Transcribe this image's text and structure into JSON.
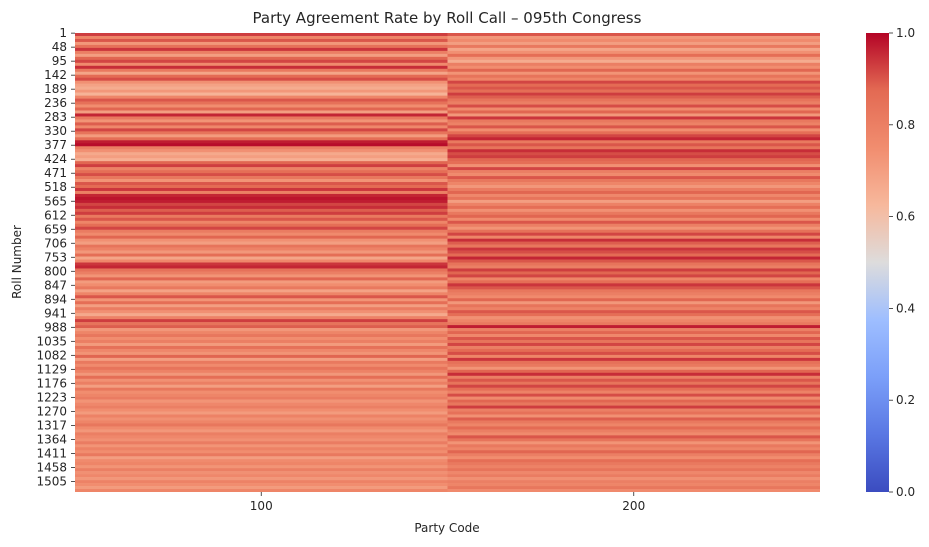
{
  "chart_data": {
    "type": "heatmap",
    "title": "Party Agreement Rate by Roll Call – 095th Congress",
    "xlabel": "Party Code",
    "ylabel": "Roll Number",
    "x_categories": [
      "100",
      "200"
    ],
    "y_tick_labels": [
      "1",
      "48",
      "95",
      "142",
      "189",
      "236",
      "283",
      "330",
      "377",
      "424",
      "471",
      "518",
      "565",
      "612",
      "659",
      "706",
      "753",
      "800",
      "847",
      "894",
      "941",
      "988",
      "1035",
      "1082",
      "1129",
      "1176",
      "1223",
      "1270",
      "1317",
      "1364",
      "1411",
      "1458",
      "1505"
    ],
    "y_range": [
      1,
      1540
    ],
    "value_range": [
      0.0,
      1.0
    ],
    "colormap": "coolwarm",
    "colorbar_ticks": [
      "0.0",
      "0.2",
      "0.4",
      "0.6",
      "0.8",
      "1.0"
    ],
    "colorbar_tick_values": [
      0.0,
      0.2,
      0.4,
      0.6,
      0.8,
      1.0
    ],
    "series": [
      {
        "name": "100",
        "segment_size": 10,
        "values": [
          0.93,
          0.78,
          0.9,
          0.72,
          0.85,
          0.94,
          0.8,
          0.7,
          0.88,
          0.92,
          0.76,
          0.95,
          0.82,
          0.68,
          0.87,
          0.91,
          0.74,
          0.69,
          0.66,
          0.72,
          0.64,
          0.78,
          0.9,
          0.85,
          0.75,
          0.88,
          0.7,
          0.96,
          0.82,
          0.73,
          0.89,
          0.77,
          0.92,
          0.84,
          0.71,
          0.86,
          0.97,
          0.99,
          0.8,
          0.74,
          0.67,
          0.7,
          0.65,
          0.88,
          0.93,
          0.79,
          0.86,
          0.91,
          0.83,
          0.73,
          0.9,
          0.87,
          0.94,
          0.8,
          0.96,
          0.98,
          0.97,
          0.92,
          0.95,
          0.89,
          0.93,
          0.82,
          0.9,
          0.78,
          0.86,
          0.92,
          0.81,
          0.76,
          0.88,
          0.74,
          0.7,
          0.84,
          0.79,
          0.72,
          0.86,
          0.68,
          0.77,
          0.94,
          0.96,
          0.85,
          0.8,
          0.73,
          0.88,
          0.71,
          0.75,
          0.82,
          0.69,
          0.78,
          0.9,
          0.73,
          0.86,
          0.7,
          0.81,
          0.74,
          0.67,
          0.79,
          0.93,
          0.84,
          0.89,
          0.72,
          0.78,
          0.83,
          0.75,
          0.8,
          0.71,
          0.85,
          0.77,
          0.73,
          0.88,
          0.7,
          0.82,
          0.76,
          0.84,
          0.79,
          0.72,
          0.86,
          0.74,
          0.8,
          0.7,
          0.83,
          0.75,
          0.78,
          0.81,
          0.73,
          0.77,
          0.8,
          0.75,
          0.71,
          0.79,
          0.74,
          0.78,
          0.83,
          0.76,
          0.72,
          0.8,
          0.77,
          0.74,
          0.81,
          0.73,
          0.79,
          0.75,
          0.82,
          0.7,
          0.76,
          0.78,
          0.73,
          0.8,
          0.74,
          0.77,
          0.72,
          0.79,
          0.75,
          0.71,
          0.78
        ]
      },
      {
        "name": "200",
        "segment_size": 10,
        "values": [
          0.9,
          0.72,
          0.76,
          0.7,
          0.82,
          0.68,
          0.74,
          0.86,
          0.72,
          0.66,
          0.8,
          0.75,
          0.88,
          0.73,
          0.84,
          0.78,
          0.92,
          0.87,
          0.9,
          0.86,
          0.93,
          0.89,
          0.84,
          0.8,
          0.91,
          0.76,
          0.88,
          0.72,
          0.94,
          0.82,
          0.79,
          0.9,
          0.75,
          0.86,
          0.92,
          0.96,
          0.82,
          0.9,
          0.84,
          0.95,
          0.91,
          0.93,
          0.88,
          0.86,
          0.74,
          0.92,
          0.8,
          0.76,
          0.9,
          0.83,
          0.78,
          0.72,
          0.81,
          0.88,
          0.77,
          0.84,
          0.7,
          0.79,
          0.86,
          0.74,
          0.82,
          0.88,
          0.76,
          0.9,
          0.8,
          0.73,
          0.85,
          0.92,
          0.78,
          0.95,
          0.89,
          0.83,
          0.94,
          0.91,
          0.87,
          0.96,
          0.9,
          0.84,
          0.8,
          0.93,
          0.88,
          0.92,
          0.78,
          0.86,
          0.94,
          0.9,
          0.83,
          0.8,
          0.76,
          0.88,
          0.72,
          0.84,
          0.79,
          0.9,
          0.86,
          0.74,
          0.78,
          0.82,
          0.97,
          0.8,
          0.88,
          0.77,
          0.9,
          0.84,
          0.92,
          0.8,
          0.87,
          0.91,
          0.78,
          0.94,
          0.85,
          0.82,
          0.73,
          0.88,
          0.95,
          0.8,
          0.9,
          0.84,
          0.92,
          0.86,
          0.79,
          0.91,
          0.76,
          0.88,
          0.83,
          0.93,
          0.8,
          0.85,
          0.74,
          0.89,
          0.82,
          0.78,
          0.87,
          0.8,
          0.76,
          0.9,
          0.84,
          0.73,
          0.82,
          0.78,
          0.88,
          0.8,
          0.75,
          0.86,
          0.82,
          0.79,
          0.84,
          0.77,
          0.81,
          0.74,
          0.8,
          0.78,
          0.83,
          0.76
        ]
      }
    ]
  }
}
